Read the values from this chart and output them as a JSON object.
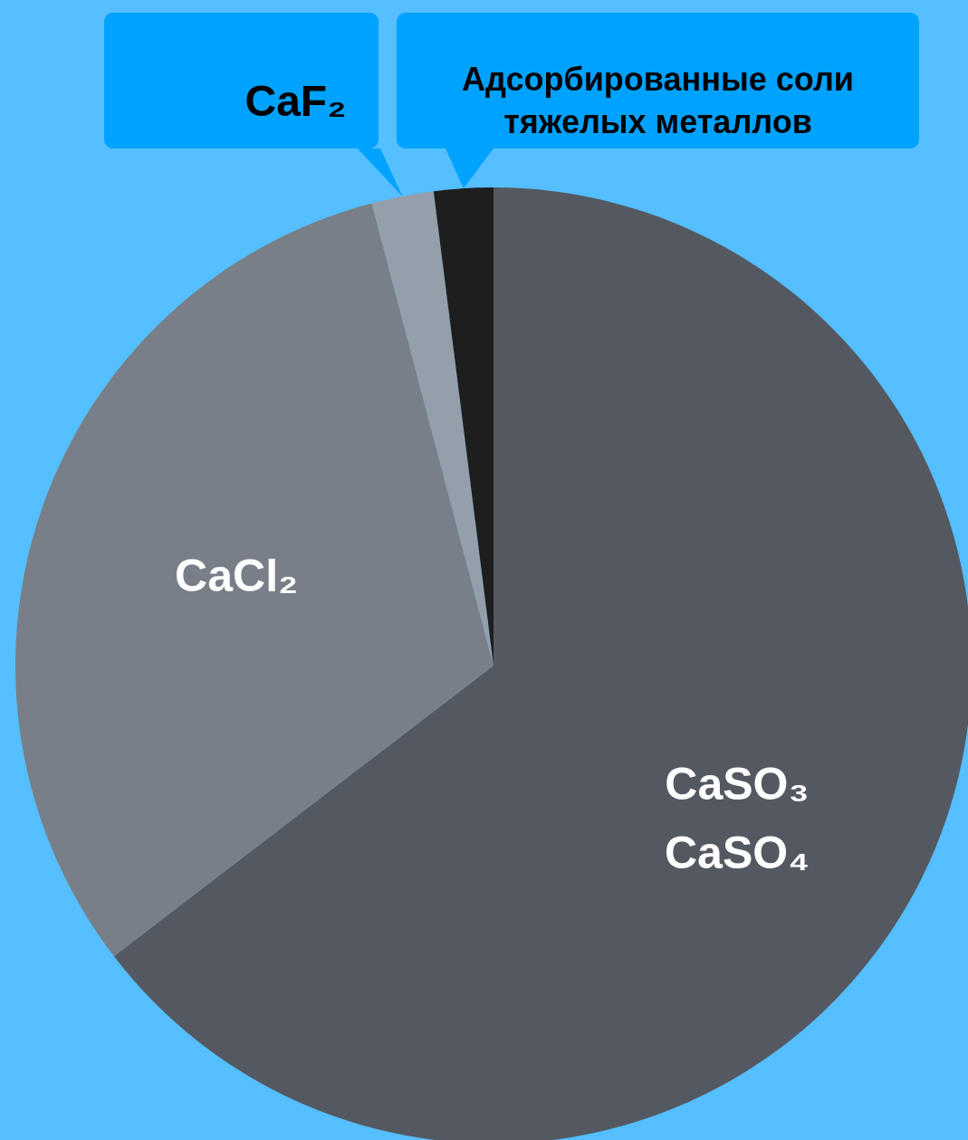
{
  "chart_data": {
    "type": "pie",
    "categories": [
      "CaSO₃\nCaSO₄",
      "CaCl₂",
      "CaF₂",
      "Адсорбированные соли\nтяжелых металлов"
    ],
    "values": [
      64.6,
      31.3,
      2.1,
      2.0
    ],
    "colors": [
      "#545961",
      "#787f88",
      "#949fab",
      "#1e1e1e"
    ]
  }
}
